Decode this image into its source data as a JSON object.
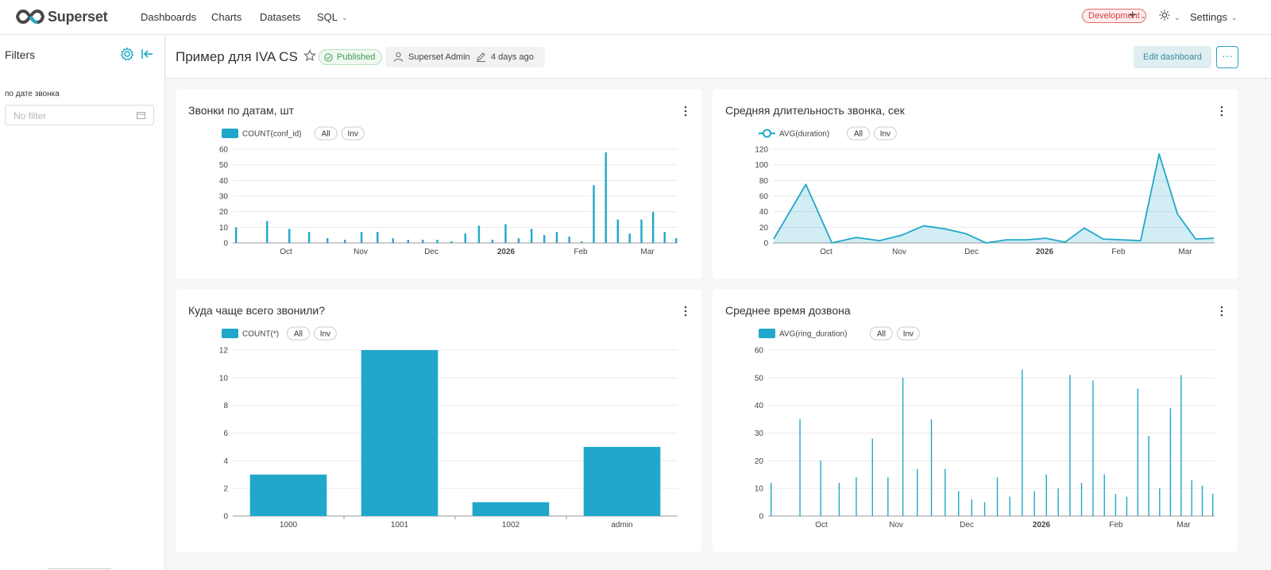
{
  "brand": {
    "name": "Superset",
    "accent": "#20a7c9"
  },
  "nav": {
    "items": [
      {
        "label": "Dashboards"
      },
      {
        "label": "Charts"
      },
      {
        "label": "Datasets"
      },
      {
        "label": "SQL"
      }
    ],
    "env_badge": "Development",
    "settings": "Settings"
  },
  "sidebar": {
    "title": "Filters",
    "filter_label": "по дате звонка",
    "filter_placeholder": "No filter"
  },
  "dashboard": {
    "title": "Пример для IVA CS",
    "status": "Published",
    "owner": "Superset Admin",
    "modified": "4 days ago",
    "edit_label": "Edit dashboard",
    "more_label": "···"
  },
  "charts": [
    {
      "title": "Звонки по датам, шт",
      "legend": [
        "COUNT(conf_id)",
        "All",
        "Inv"
      ],
      "chart_data": {
        "type": "bar",
        "x_ticks": [
          "Oct",
          "Nov",
          "Dec",
          "2026",
          "Feb",
          "Mar"
        ],
        "ylim": [
          0,
          60
        ],
        "y_ticks": [
          0,
          10,
          20,
          30,
          40,
          50,
          60
        ],
        "series": [
          {
            "name": "COUNT(conf_id)",
            "values": [
              10,
              14,
              9,
              7,
              3,
              2,
              7,
              7,
              3,
              2,
              2,
              2,
              1,
              6,
              11,
              2,
              12,
              3,
              9,
              5,
              7,
              4,
              1,
              37,
              58,
              15,
              6,
              15,
              20,
              7,
              3
            ]
          }
        ]
      }
    },
    {
      "title": "Средняя длительность звонка, сек",
      "legend": [
        "AVG(duration)",
        "All",
        "Inv"
      ],
      "chart_data": {
        "type": "area",
        "x_ticks": [
          "Oct",
          "Nov",
          "Dec",
          "2026",
          "Feb",
          "Mar"
        ],
        "ylim": [
          0,
          120
        ],
        "y_ticks": [
          0,
          20,
          40,
          60,
          80,
          100,
          120
        ],
        "series": [
          {
            "name": "AVG(duration)",
            "values": [
              5,
              75,
              0,
              7,
              3,
              10,
              22,
              18,
              12,
              0,
              4,
              4,
              6,
              1,
              19,
              5,
              4,
              3,
              114,
              37,
              5,
              6
            ]
          }
        ]
      }
    },
    {
      "title": "Куда чаще всего звонили?",
      "legend": [
        "COUNT(*)",
        "All",
        "Inv"
      ],
      "chart_data": {
        "type": "bar",
        "categories": [
          "1000",
          "1001",
          "1002",
          "admin"
        ],
        "ylim": [
          0,
          12
        ],
        "y_ticks": [
          0,
          2,
          4,
          6,
          8,
          10,
          12
        ],
        "series": [
          {
            "name": "COUNT(*)",
            "values": [
              3,
              12,
              1,
              5
            ]
          }
        ]
      }
    },
    {
      "title": "Среднее время дозвона",
      "legend": [
        "AVG(ring_duration)",
        "All",
        "Inv"
      ],
      "chart_data": {
        "type": "bar",
        "x_ticks": [
          "Oct",
          "Nov",
          "Dec",
          "2026",
          "Feb",
          "Mar"
        ],
        "ylim": [
          0,
          60
        ],
        "y_ticks": [
          0,
          10,
          20,
          30,
          40,
          50,
          60
        ],
        "series": [
          {
            "name": "AVG(ring_duration)",
            "values": [
              12,
              35,
              20,
              12,
              14,
              28,
              14,
              50,
              17,
              35,
              17,
              9,
              6,
              5,
              14,
              7,
              53,
              9,
              15,
              10,
              51,
              12,
              49,
              15,
              8,
              7,
              46,
              29,
              10,
              39,
              51,
              13,
              11,
              8
            ]
          }
        ]
      }
    }
  ]
}
